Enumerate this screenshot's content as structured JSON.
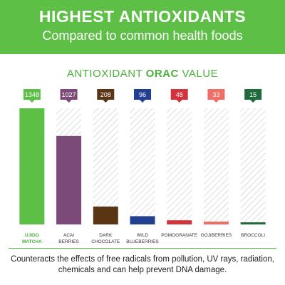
{
  "header": {
    "title": "HIGHEST ANTIOXIDANTS",
    "subtitle": "Compared to common health foods"
  },
  "chart_heading": {
    "prefix": "ANTIOXIDANT ",
    "emphasis": "ORAC",
    "suffix": " VALUE"
  },
  "chart_data": {
    "type": "bar",
    "title": "ANTIOXIDANT ORAC VALUE",
    "categories": [
      [
        "UJIDO",
        "MATCHA"
      ],
      [
        "ACAI",
        "BERRIES"
      ],
      [
        "DARK",
        "CHOCOLATE"
      ],
      [
        "WILD",
        "BLUEBERRIES"
      ],
      [
        "POMOGRANATE"
      ],
      [
        "GOJIBERRIES"
      ],
      [
        "BROCCOLI"
      ]
    ],
    "values": [
      1348,
      1027,
      208,
      96,
      48,
      33,
      15
    ],
    "ylim": [
      0,
      1348
    ],
    "colors": [
      "#5ebf47",
      "#7b4a78",
      "#5a3514",
      "#233f8f",
      "#d2323a",
      "#ef6f66",
      "#1f6b3a"
    ],
    "highlight_index": 0,
    "grid": false,
    "legend": "none"
  },
  "footnote": "Counteracts the effects of free radicals from pollution, UV rays, radiation, chemicals and can help prevent DNA damage."
}
